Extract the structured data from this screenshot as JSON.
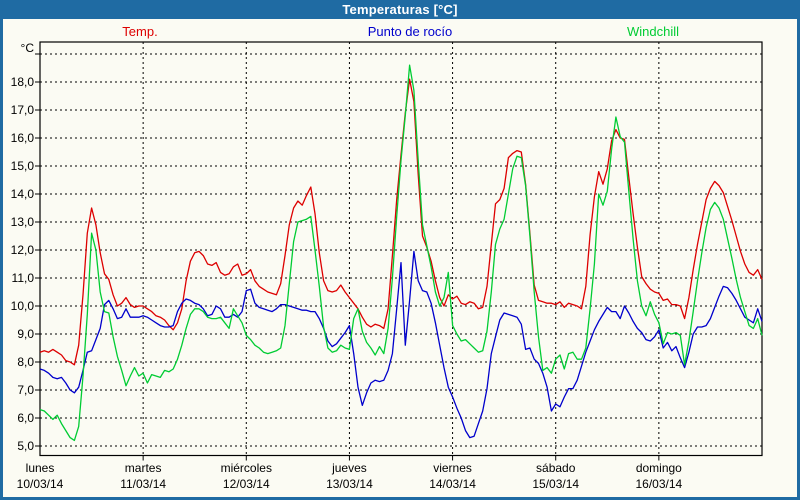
{
  "window": {
    "title": "Temperaturas [°C]",
    "titlebar_color": "#1f6ba3",
    "canvas_color": "#fbfbf3"
  },
  "chart_data": {
    "type": "line",
    "title": "Temperaturas [°C]",
    "ylabel": "°C",
    "grid": true,
    "legend_position": "top",
    "ylim": [
      4.6,
      19.4
    ],
    "y_gridline_values": [
      5,
      6,
      7,
      8,
      9,
      10,
      11,
      12,
      13,
      14,
      15,
      16,
      17,
      18,
      19
    ],
    "y_tick_labels": [
      "5,0",
      "6,0",
      "7,0",
      "8,0",
      "9,0",
      "10,0",
      "11,0",
      "12,0",
      "13,0",
      "14,0",
      "15,0",
      "16,0",
      "17,0",
      "18,0"
    ],
    "x_days": [
      {
        "weekday": "lunes",
        "date": "10/03/14"
      },
      {
        "weekday": "martes",
        "date": "11/03/14"
      },
      {
        "weekday": "miércoles",
        "date": "12/03/14"
      },
      {
        "weekday": "jueves",
        "date": "13/03/14"
      },
      {
        "weekday": "viernes",
        "date": "14/03/14"
      },
      {
        "weekday": "sábado",
        "date": "15/03/14"
      },
      {
        "weekday": "domingo",
        "date": "16/03/14"
      }
    ],
    "x_unit": "hours",
    "x_step_hours": 1,
    "x_total_hours": 168,
    "series": [
      {
        "name": "Temp.",
        "color": "#dd0000",
        "values": [
          8.35,
          8.4,
          8.35,
          8.45,
          8.35,
          8.25,
          8.05,
          8.0,
          7.9,
          8.6,
          10.4,
          12.6,
          13.5,
          12.9,
          11.9,
          11.15,
          10.95,
          10.4,
          10.0,
          10.1,
          10.3,
          10.05,
          9.95,
          10.0,
          10.0,
          9.9,
          9.8,
          9.65,
          9.6,
          9.5,
          9.3,
          9.15,
          9.4,
          9.9,
          10.9,
          11.6,
          11.9,
          11.95,
          11.8,
          11.5,
          11.45,
          11.55,
          11.2,
          11.1,
          11.15,
          11.4,
          11.5,
          11.1,
          11.15,
          11.3,
          10.9,
          10.7,
          10.6,
          10.5,
          10.45,
          10.4,
          10.8,
          11.8,
          12.9,
          13.5,
          13.75,
          13.6,
          13.95,
          14.25,
          13.3,
          11.9,
          10.9,
          10.55,
          10.5,
          10.55,
          10.75,
          10.5,
          10.3,
          10.1,
          9.9,
          9.6,
          9.35,
          9.25,
          9.35,
          9.3,
          9.2,
          9.9,
          11.8,
          13.8,
          15.4,
          16.9,
          18.1,
          17.3,
          14.7,
          12.5,
          12.1,
          11.6,
          10.9,
          10.3,
          10.0,
          10.4,
          10.25,
          10.35,
          10.1,
          10.05,
          10.15,
          10.1,
          9.9,
          9.95,
          10.7,
          12.2,
          13.65,
          13.8,
          14.2,
          15.3,
          15.45,
          15.55,
          15.5,
          14.35,
          12.6,
          10.75,
          10.2,
          10.15,
          10.1,
          10.1,
          10.05,
          10.15,
          9.95,
          10.1,
          10.05,
          10.0,
          9.9,
          10.7,
          12.55,
          13.9,
          14.8,
          14.35,
          14.9,
          15.9,
          16.3,
          16.0,
          15.95,
          14.6,
          13.3,
          12.1,
          11.05,
          10.8,
          10.6,
          10.5,
          10.45,
          10.2,
          10.25,
          10.05,
          10.05,
          10.0,
          9.55,
          10.3,
          11.3,
          12.2,
          13.0,
          13.8,
          14.2,
          14.45,
          14.3,
          14.05,
          13.55,
          13.05,
          12.5,
          11.95,
          11.5,
          11.2,
          11.1,
          11.3,
          10.95
        ]
      },
      {
        "name": "Punto de rocío",
        "color": "#0000cc",
        "values": [
          7.75,
          7.7,
          7.6,
          7.45,
          7.4,
          7.45,
          7.25,
          7.0,
          6.9,
          7.1,
          7.7,
          8.35,
          8.4,
          8.8,
          9.2,
          10.05,
          10.2,
          9.9,
          9.55,
          9.6,
          9.9,
          9.6,
          9.6,
          9.6,
          9.65,
          9.6,
          9.5,
          9.4,
          9.3,
          9.25,
          9.25,
          9.3,
          9.8,
          10.1,
          10.25,
          10.2,
          10.1,
          10.05,
          9.9,
          9.65,
          9.7,
          10.0,
          9.9,
          9.6,
          9.6,
          9.7,
          9.6,
          9.8,
          10.55,
          10.6,
          10.1,
          9.95,
          9.9,
          9.85,
          9.8,
          9.9,
          10.05,
          10.05,
          10.0,
          9.95,
          9.9,
          9.85,
          9.85,
          9.8,
          9.8,
          9.55,
          9.2,
          8.75,
          8.55,
          8.65,
          8.85,
          9.05,
          9.3,
          8.3,
          7.1,
          6.45,
          6.9,
          7.25,
          7.35,
          7.3,
          7.35,
          7.7,
          8.3,
          9.9,
          11.55,
          8.6,
          10.2,
          11.95,
          10.9,
          10.55,
          10.5,
          10.1,
          9.4,
          8.6,
          7.8,
          7.1,
          6.75,
          6.35,
          6.0,
          5.55,
          5.3,
          5.35,
          5.8,
          6.25,
          7.05,
          8.3,
          8.9,
          9.5,
          9.75,
          9.7,
          9.65,
          9.6,
          9.35,
          8.45,
          8.5,
          8.1,
          7.95,
          7.6,
          7.1,
          6.25,
          6.5,
          6.4,
          6.75,
          7.05,
          7.05,
          7.35,
          7.85,
          8.35,
          8.75,
          9.15,
          9.45,
          9.7,
          9.95,
          9.8,
          9.8,
          9.55,
          10.0,
          9.75,
          9.45,
          9.2,
          9.05,
          8.8,
          8.75,
          8.9,
          9.15,
          8.5,
          8.7,
          8.4,
          8.55,
          8.15,
          7.8,
          8.35,
          9.0,
          9.25,
          9.25,
          9.3,
          9.55,
          9.95,
          10.35,
          10.7,
          10.65,
          10.45,
          10.2,
          9.9,
          9.6,
          9.5,
          9.4,
          9.9,
          9.45
        ]
      },
      {
        "name": "Windchill",
        "color": "#00cc33",
        "values": [
          6.3,
          6.25,
          6.1,
          5.95,
          6.1,
          5.8,
          5.55,
          5.3,
          5.2,
          5.7,
          7.5,
          9.7,
          12.6,
          12.0,
          10.5,
          9.8,
          9.75,
          8.9,
          8.2,
          7.7,
          7.15,
          7.5,
          7.8,
          7.5,
          7.6,
          7.25,
          7.55,
          7.5,
          7.45,
          7.7,
          7.65,
          7.75,
          8.1,
          8.6,
          9.2,
          9.7,
          9.9,
          9.9,
          9.8,
          9.6,
          9.55,
          9.55,
          9.6,
          9.4,
          9.2,
          9.9,
          9.65,
          9.4,
          8.95,
          8.8,
          8.6,
          8.5,
          8.35,
          8.3,
          8.35,
          8.4,
          8.5,
          9.3,
          10.8,
          12.3,
          13.0,
          13.05,
          13.1,
          13.2,
          12.0,
          10.7,
          9.25,
          8.5,
          8.35,
          8.4,
          8.6,
          8.5,
          8.45,
          9.55,
          9.9,
          9.1,
          8.7,
          8.5,
          8.25,
          8.55,
          8.3,
          9.2,
          11.0,
          13.2,
          15.2,
          16.8,
          18.6,
          17.7,
          15.2,
          12.9,
          12.15,
          11.4,
          10.5,
          10.0,
          10.3,
          11.2,
          9.3,
          9.0,
          8.75,
          8.8,
          8.65,
          8.5,
          8.35,
          8.4,
          9.1,
          10.5,
          12.2,
          12.75,
          13.1,
          14.0,
          14.9,
          15.35,
          15.3,
          14.3,
          12.5,
          10.5,
          8.9,
          7.7,
          7.8,
          7.6,
          8.1,
          8.25,
          7.75,
          8.3,
          8.35,
          8.1,
          8.1,
          8.5,
          9.9,
          11.5,
          14.0,
          13.6,
          14.1,
          15.6,
          16.75,
          16.05,
          15.85,
          14.1,
          12.4,
          10.9,
          10.0,
          9.65,
          10.15,
          9.7,
          9.4,
          8.65,
          9.05,
          9.0,
          9.05,
          8.95,
          7.9,
          8.75,
          9.8,
          10.9,
          11.9,
          12.8,
          13.45,
          13.7,
          13.5,
          13.1,
          12.4,
          11.7,
          10.95,
          10.3,
          9.8,
          9.3,
          9.2,
          9.55,
          8.95
        ]
      }
    ]
  }
}
